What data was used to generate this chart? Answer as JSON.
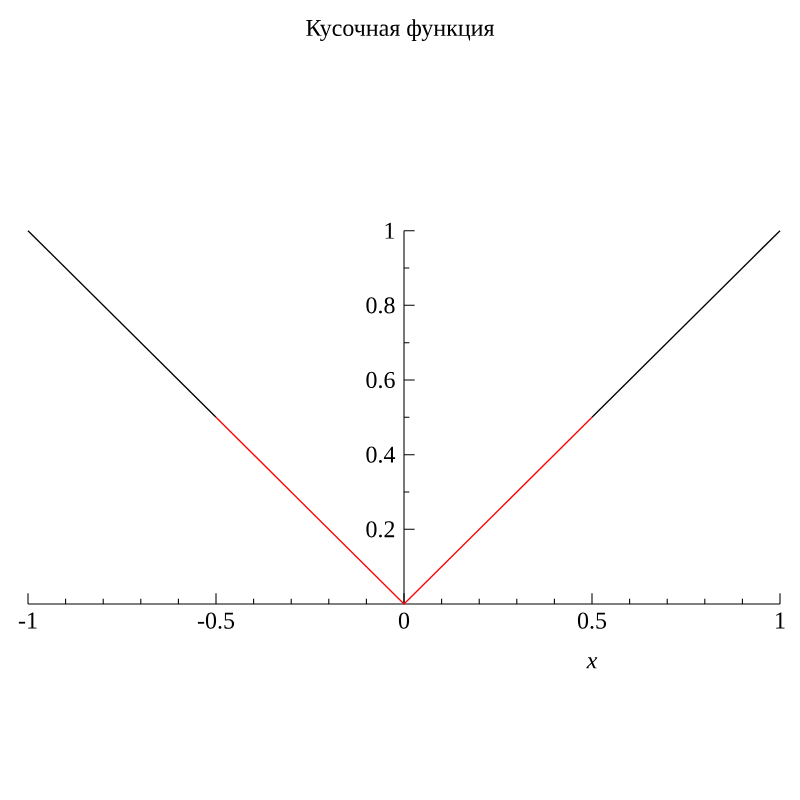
{
  "chart_data": {
    "type": "line",
    "title": "Кусочная функция",
    "xlabel": "x",
    "series": [
      {
        "color": "#000000",
        "x": [
          -1,
          -0.5
        ],
        "values": [
          1,
          0.5
        ]
      },
      {
        "color": "#ff0000",
        "x": [
          -0.5,
          0,
          0.5
        ],
        "values": [
          0.5,
          0,
          0.5
        ]
      },
      {
        "color": "#000000",
        "x": [
          0.5,
          1
        ],
        "values": [
          0.5,
          1
        ]
      }
    ],
    "xlim": [
      -1,
      1
    ],
    "ylim": [
      0,
      1
    ],
    "xticks": [
      -1,
      -0.5,
      0,
      0.5,
      1
    ],
    "yticks": [
      0.2,
      0.4,
      0.6,
      0.8,
      1
    ],
    "marker": "none",
    "line_style": "solid"
  }
}
